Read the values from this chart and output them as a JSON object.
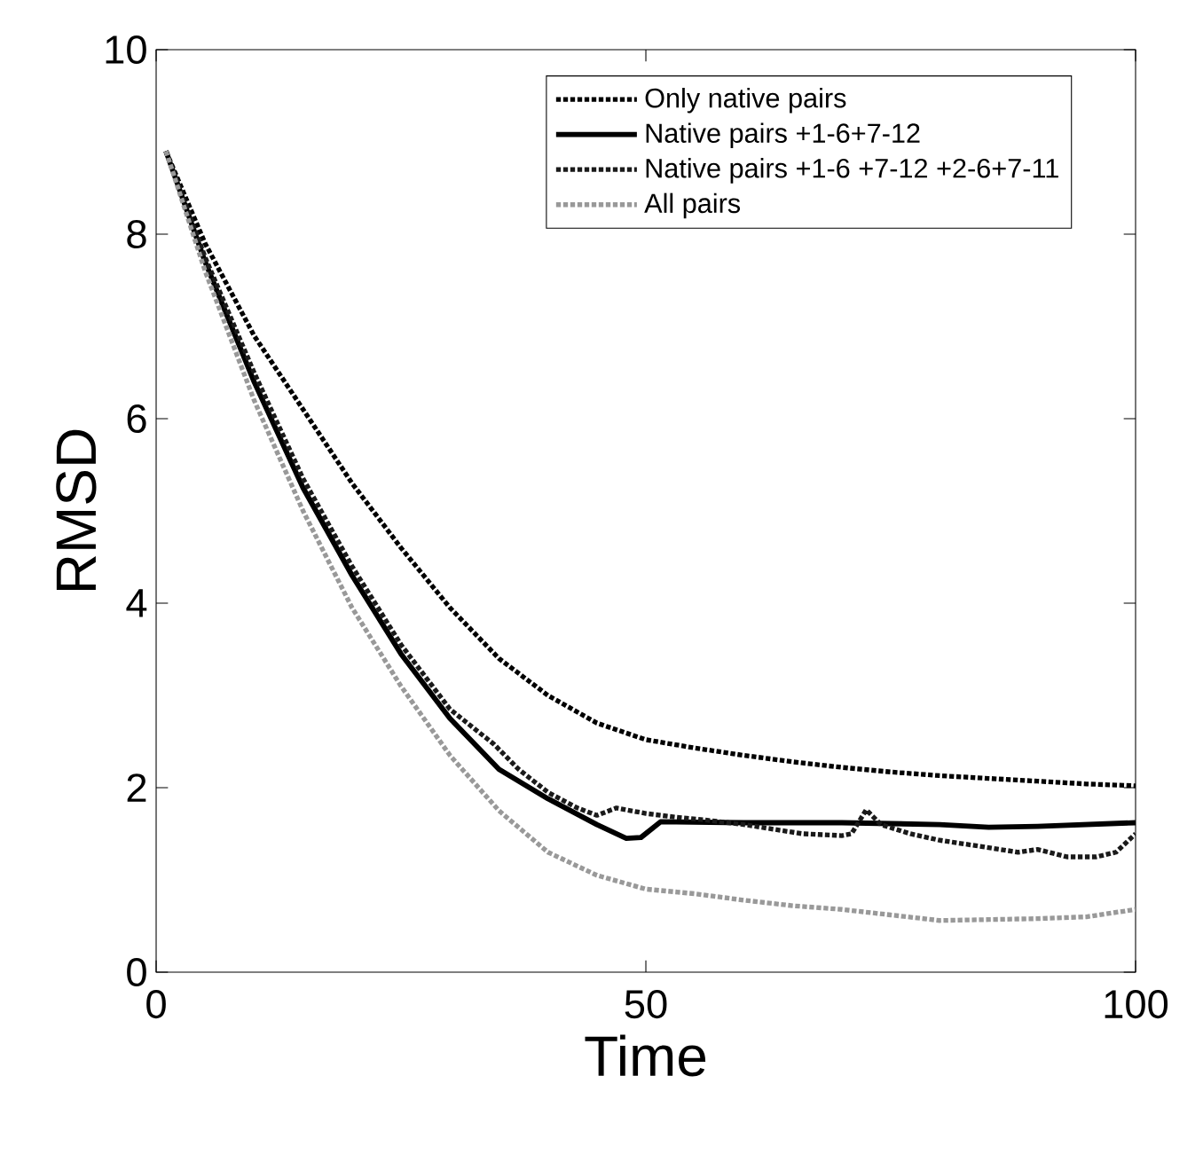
{
  "chart_data": {
    "type": "line",
    "xlabel": "Time",
    "ylabel": "RMSD",
    "xlim": [
      0,
      100
    ],
    "ylim": [
      0,
      10
    ],
    "xticks": [
      0,
      50,
      100
    ],
    "yticks": [
      0,
      2,
      4,
      6,
      8,
      10
    ],
    "grid": false,
    "legend": "top right",
    "marker": "none",
    "series": [
      {
        "name": "Only native pairs",
        "color": "#000000",
        "line_style": "dotted",
        "x": [
          1,
          5,
          10,
          15,
          20,
          25,
          30,
          35,
          40,
          45,
          50,
          55,
          60,
          65,
          70,
          75,
          80,
          85,
          90,
          95,
          100
        ],
        "values": [
          8.9,
          7.9,
          6.9,
          6.1,
          5.3,
          4.6,
          3.95,
          3.4,
          3.0,
          2.7,
          2.52,
          2.43,
          2.35,
          2.28,
          2.22,
          2.17,
          2.13,
          2.1,
          2.07,
          2.04,
          2.02
        ]
      },
      {
        "name": "Native pairs +1-6+7-12",
        "color": "#000000",
        "line_style": "solid",
        "x": [
          1,
          5,
          10,
          15,
          20,
          25,
          30,
          35,
          40,
          45,
          48,
          49.5,
          51.5,
          60,
          70,
          80,
          85,
          90,
          100
        ],
        "values": [
          8.9,
          7.7,
          6.4,
          5.25,
          4.3,
          3.45,
          2.75,
          2.2,
          1.88,
          1.6,
          1.45,
          1.46,
          1.63,
          1.62,
          1.62,
          1.6,
          1.57,
          1.58,
          1.62
        ]
      },
      {
        "name": "Native pairs +1-6 +7-12 +2-6+7-11",
        "color": "#1a1a1a",
        "line_style": "dotted",
        "x": [
          1,
          5,
          10,
          15,
          20,
          25,
          30,
          34.5,
          37,
          40,
          43,
          45,
          47,
          50,
          53,
          56,
          60,
          63,
          66,
          70,
          71,
          72.5,
          74,
          77,
          80,
          85,
          88,
          90,
          93,
          96,
          98,
          100
        ],
        "values": [
          8.9,
          7.75,
          6.5,
          5.35,
          4.4,
          3.55,
          2.85,
          2.47,
          2.2,
          1.95,
          1.78,
          1.7,
          1.78,
          1.72,
          1.68,
          1.65,
          1.6,
          1.55,
          1.5,
          1.48,
          1.5,
          1.76,
          1.6,
          1.5,
          1.43,
          1.35,
          1.3,
          1.33,
          1.25,
          1.25,
          1.3,
          1.5
        ]
      },
      {
        "name": "All pairs",
        "color": "#999999",
        "line_style": "dotted",
        "x": [
          1,
          5,
          10,
          15,
          20,
          25,
          30,
          35,
          40,
          45,
          50,
          55,
          60,
          65,
          70,
          75,
          80,
          85,
          90,
          95,
          100
        ],
        "values": [
          8.9,
          7.6,
          6.2,
          5.0,
          3.95,
          3.1,
          2.35,
          1.75,
          1.3,
          1.05,
          0.9,
          0.85,
          0.78,
          0.72,
          0.68,
          0.62,
          0.56,
          0.57,
          0.58,
          0.6,
          0.68
        ]
      }
    ]
  }
}
